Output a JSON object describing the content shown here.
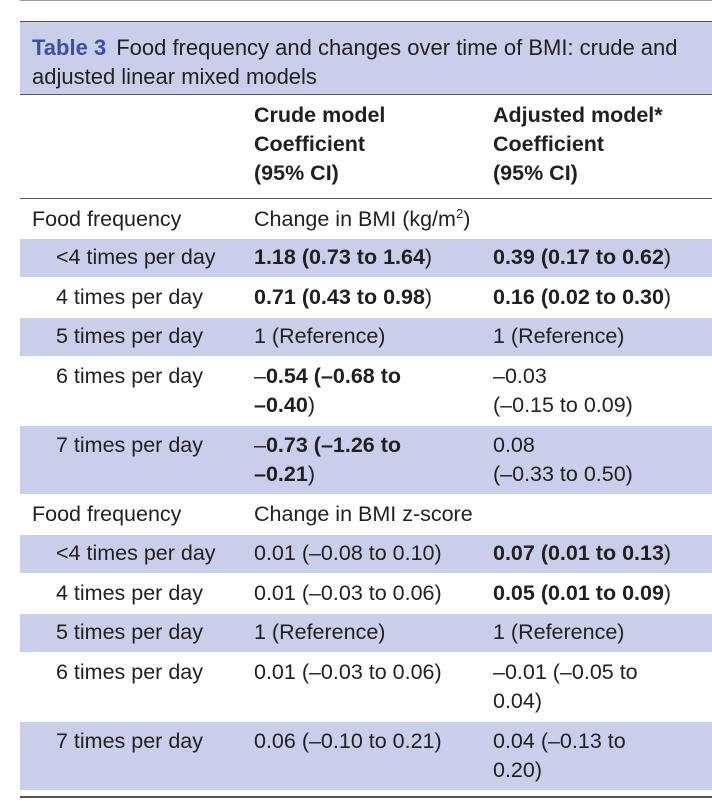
{
  "caption": {
    "label": "Table 3",
    "text": "Food frequency and changes over time of BMI: crude and adjusted linear mixed models"
  },
  "header": {
    "crude": [
      "Crude model",
      "Coefficient",
      "(95% CI)"
    ],
    "adjusted": [
      "Adjusted model*",
      "Coefficient",
      "(95% CI)"
    ]
  },
  "sections": [
    {
      "label": "Food frequency",
      "outcome_prefix": "Change in BMI (kg/m",
      "outcome_sup": "2",
      "outcome_suffix": ")",
      "rows": [
        {
          "label": "<4 times per day",
          "crude": {
            "bold": "1.18 (0.73 to 1.64",
            "plain": ")"
          },
          "adjusted": {
            "bold": "0.39 (0.17 to 0.62",
            "plain": ")"
          }
        },
        {
          "label": "4 times per day",
          "crude": {
            "bold": "0.71 (0.43 to 0.98",
            "plain": ")"
          },
          "adjusted": {
            "bold": "0.16 (0.02 to 0.30",
            "plain": ")"
          }
        },
        {
          "label": "5 times per day",
          "crude": {
            "plain": "1 (Reference)"
          },
          "adjusted": {
            "plain": "1 (Reference)"
          }
        },
        {
          "label": "6 times per day",
          "crude": {
            "line1_pre": "–",
            "line1_bold": "0.54 (–0.68 to",
            "line2_bold": "–0.40",
            "line2_plain": ")"
          },
          "adjusted": {
            "line1": "–0.03",
            "line2": "(–0.15 to 0.09)"
          }
        },
        {
          "label": "7 times per day",
          "crude": {
            "line1_pre": "–",
            "line1_bold": "0.73 (–1.26 to",
            "line2_bold": "–0.21",
            "line2_plain": ")"
          },
          "adjusted": {
            "line1": "0.08",
            "line2": "(–0.33 to 0.50)"
          }
        }
      ]
    },
    {
      "label": "Food frequency",
      "outcome": "Change in BMI z-score",
      "rows": [
        {
          "label": "<4 times per day",
          "crude": {
            "plain": "0.01 (–0.08 to 0.10)"
          },
          "adjusted": {
            "bold": "0.07 (0.01 to 0.13",
            "plain": ")"
          }
        },
        {
          "label": "4 times per day",
          "crude": {
            "plain": "0.01 (–0.03 to 0.06)"
          },
          "adjusted": {
            "bold": "0.05 (0.01 to 0.09",
            "plain": ")"
          }
        },
        {
          "label": "5 times per day",
          "crude": {
            "plain": "1 (Reference)"
          },
          "adjusted": {
            "plain": "1 (Reference)"
          }
        },
        {
          "label": "6 times per day",
          "crude": {
            "plain": "0.01 (–0.03 to 0.06)"
          },
          "adjusted": {
            "line1": "–0.01 (–0.05 to",
            "line2": "0.04)"
          }
        },
        {
          "label": "7 times per day",
          "crude": {
            "plain": "0.06 (–0.10 to 0.21)"
          },
          "adjusted": {
            "line1": "0.04 (–0.13 to",
            "line2": "0.20)"
          }
        }
      ]
    }
  ]
}
